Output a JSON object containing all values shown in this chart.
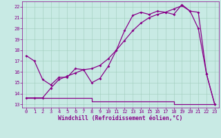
{
  "bg_color": "#c8eae4",
  "line_color": "#880088",
  "grid_color": "#a0ccbc",
  "xlabel": "Windchill (Refroidissement éolien,°C)",
  "xlabel_color": "#880088",
  "tick_color": "#880088",
  "xlim": [
    -0.5,
    23.5
  ],
  "ylim": [
    12.7,
    22.5
  ],
  "yticks": [
    13,
    14,
    15,
    16,
    17,
    18,
    19,
    20,
    21,
    22
  ],
  "xticks": [
    0,
    1,
    2,
    3,
    4,
    5,
    6,
    7,
    8,
    9,
    10,
    11,
    12,
    13,
    14,
    15,
    16,
    17,
    18,
    19,
    20,
    21,
    22,
    23
  ],
  "temp_x": [
    0,
    1,
    2,
    3,
    4,
    5,
    6,
    7,
    8,
    9,
    10,
    11,
    12,
    13,
    14,
    15,
    16,
    17,
    18,
    19,
    20,
    21,
    22,
    23
  ],
  "temp_y": [
    17.5,
    17.0,
    15.3,
    14.8,
    15.5,
    15.5,
    16.3,
    16.2,
    15.0,
    15.4,
    16.5,
    18.0,
    19.8,
    21.2,
    21.5,
    21.3,
    21.6,
    21.5,
    21.3,
    22.2,
    21.6,
    20.0,
    15.8,
    13.0
  ],
  "smooth_x": [
    0,
    1,
    2,
    3,
    4,
    5,
    6,
    7,
    8,
    9,
    10,
    11,
    12,
    13,
    14,
    15,
    16,
    17,
    18,
    19,
    20,
    21,
    22,
    23
  ],
  "smooth_y": [
    13.6,
    13.6,
    13.6,
    14.5,
    15.3,
    15.6,
    15.9,
    16.2,
    16.3,
    16.6,
    17.2,
    18.0,
    18.9,
    19.8,
    20.5,
    21.0,
    21.3,
    21.5,
    21.8,
    22.1,
    21.6,
    21.5,
    15.8,
    13.0
  ],
  "flat_x": [
    0,
    1,
    2,
    3,
    4,
    5,
    6,
    7,
    8,
    9,
    10,
    11,
    12,
    13,
    14,
    15,
    16,
    17,
    18,
    19,
    20,
    21,
    22,
    23
  ],
  "flat_y": [
    13.6,
    13.6,
    13.6,
    13.6,
    13.6,
    13.6,
    13.6,
    13.6,
    13.3,
    13.3,
    13.3,
    13.3,
    13.3,
    13.3,
    13.3,
    13.3,
    13.3,
    13.3,
    13.0,
    13.0,
    13.0,
    13.0,
    13.0,
    13.0
  ],
  "marker_size": 2.0,
  "line_width": 0.9,
  "font_size_ticks": 5.0,
  "font_size_xlabel": 5.8
}
